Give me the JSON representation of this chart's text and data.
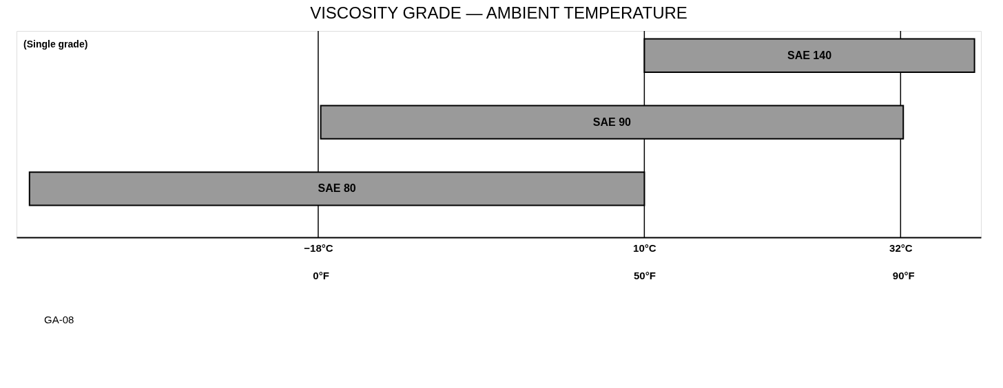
{
  "chart_data": {
    "type": "bar",
    "orientation": "horizontal",
    "title": "VISCOSITY GRADE — AMBIENT TEMPERATURE",
    "subtitle": "(Single grade)",
    "categories": [
      "SAE 140",
      "SAE 90",
      "SAE 80"
    ],
    "base": [
      50,
      0,
      -45
    ],
    "values": [
      51,
      90,
      95
    ],
    "color": "#9a9a9a",
    "xlim": [
      -47,
      102
    ],
    "xticks": [
      {
        "value": 0,
        "label": "0°F"
      },
      {
        "value": 50,
        "label": "50°F"
      },
      {
        "value": 90,
        "label": "90°F"
      }
    ],
    "x2lim": [
      -43.9,
      38.9
    ],
    "x2ticks": [
      {
        "value": -18,
        "label": "−18°C"
      },
      {
        "value": 10,
        "label": "10°C"
      },
      {
        "value": 32,
        "label": "32°C"
      }
    ],
    "grid": "x",
    "tick_labels": "x",
    "annotations": [
      "GA-08"
    ]
  }
}
